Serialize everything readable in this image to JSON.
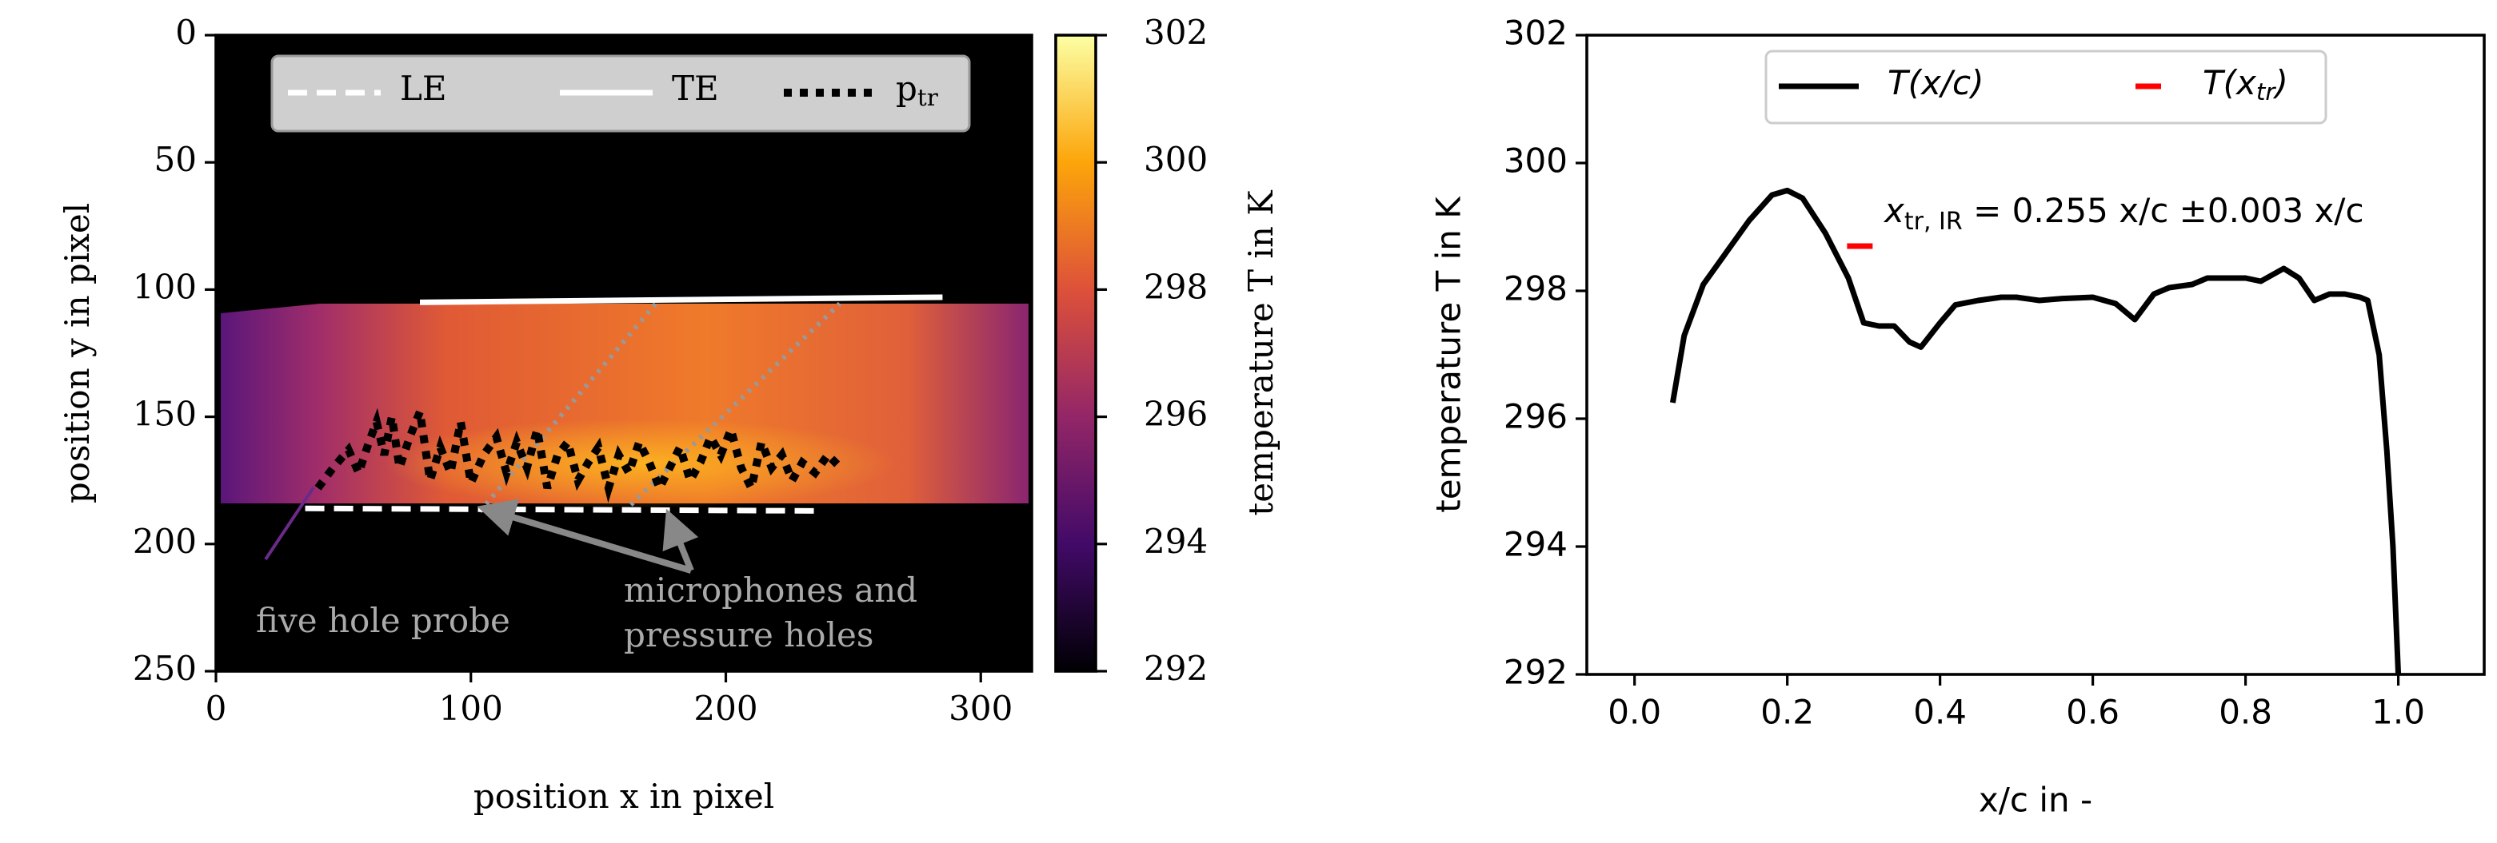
{
  "chart_data": [
    {
      "type": "image",
      "xlabel": "position x in pixel",
      "ylabel": "position y in pixel",
      "xlim": [
        0,
        320
      ],
      "ylim": [
        250,
        0
      ],
      "xticks": [
        0,
        100,
        200,
        300
      ],
      "yticks": [
        0,
        50,
        100,
        150,
        200,
        250
      ],
      "legend": "top",
      "series": [
        {
          "name": "LE",
          "color": "#ffffff",
          "style": "dashed",
          "x": [
            35,
            237
          ],
          "values": [
            186,
            187
          ]
        },
        {
          "name": "TE",
          "color": "#ffffff",
          "style": "solid",
          "x": [
            80,
            285
          ],
          "values": [
            105,
            103
          ]
        },
        {
          "name": "p",
          "name_sub": "tr",
          "color": "#000000",
          "style": "dotted",
          "x": [
            40,
            46,
            52,
            56,
            60,
            63,
            66,
            69,
            72,
            76,
            80,
            84,
            88,
            92,
            96,
            100,
            105,
            110,
            114,
            118,
            122,
            126,
            130,
            134,
            138,
            142,
            146,
            150,
            154,
            158,
            162,
            166,
            170,
            174,
            178,
            182,
            186,
            190,
            194,
            198,
            202,
            206,
            210,
            214,
            218,
            222,
            226,
            230,
            235,
            240,
            245
          ],
          "values": [
            178,
            170,
            163,
            172,
            160,
            152,
            165,
            150,
            170,
            158,
            148,
            175,
            162,
            172,
            152,
            176,
            165,
            158,
            172,
            160,
            170,
            155,
            178,
            165,
            160,
            175,
            168,
            162,
            178,
            165,
            172,
            160,
            168,
            178,
            170,
            162,
            175,
            168,
            158,
            165,
            155,
            170,
            178,
            160,
            170,
            165,
            175,
            168,
            172,
            165,
            170
          ]
        }
      ],
      "colorbar": {
        "label": "temperature T in K",
        "lim": [
          292,
          302
        ],
        "ticks": [
          292,
          294,
          296,
          298,
          300,
          302
        ]
      },
      "annotations": [
        "five hole probe",
        "microphones and",
        "pressure holes"
      ]
    },
    {
      "type": "line",
      "xlabel": "x/c in -",
      "ylabel": "temperature T in K",
      "xlim": [
        -0.0625,
        1.1125
      ],
      "ylim": [
        292,
        302
      ],
      "xticks": [
        {
          "value": 0,
          "label": "0.0"
        },
        0.2,
        0.4,
        0.6,
        0.8,
        {
          "value": 1,
          "label": "1.0"
        }
      ],
      "yticks": [
        292,
        294,
        296,
        298,
        300,
        302
      ],
      "legend": "top",
      "series": [
        {
          "name": "T(x/c)",
          "color": "#000000",
          "x": [
            0.05,
            0.065,
            0.09,
            0.12,
            0.15,
            0.18,
            0.2,
            0.22,
            0.25,
            0.28,
            0.3,
            0.32,
            0.34,
            0.36,
            0.375,
            0.4,
            0.42,
            0.45,
            0.48,
            0.5,
            0.53,
            0.56,
            0.6,
            0.63,
            0.655,
            0.68,
            0.7,
            0.73,
            0.75,
            0.78,
            0.8,
            0.82,
            0.85,
            0.87,
            0.89,
            0.91,
            0.93,
            0.95,
            0.96,
            0.975,
            0.985,
            0.993,
            1.0
          ],
          "values": [
            296.25,
            297.3,
            298.1,
            298.6,
            299.1,
            299.5,
            299.57,
            299.45,
            298.9,
            298.2,
            297.5,
            297.45,
            297.45,
            297.2,
            297.12,
            297.5,
            297.78,
            297.85,
            297.9,
            297.9,
            297.85,
            297.88,
            297.9,
            297.8,
            297.55,
            297.95,
            298.05,
            298.1,
            298.2,
            298.2,
            298.2,
            298.15,
            298.35,
            298.2,
            297.85,
            297.95,
            297.95,
            297.9,
            297.85,
            297.0,
            295.5,
            294.0,
            292.0
          ]
        },
        {
          "name": "T(x",
          "name_sub": "tr",
          "name_end": ")",
          "color": "#ff0000",
          "marker": "hline",
          "x": [
            0.295
          ],
          "values": [
            298.7
          ]
        }
      ],
      "annotation": {
        "text": "x",
        "sub": "tr, IR",
        "rest": " = 0.255 x/c ±0.003 x/c"
      }
    }
  ]
}
